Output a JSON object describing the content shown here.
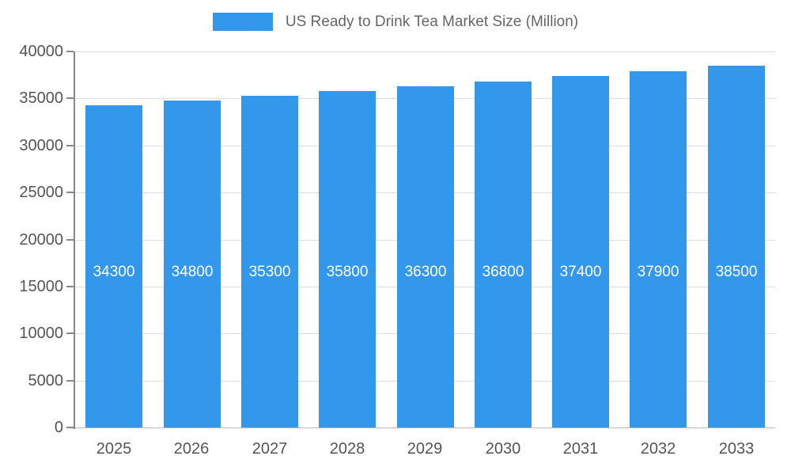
{
  "chart_data": {
    "type": "bar",
    "title": "US Ready to Drink Tea Market Size (Million)",
    "categories": [
      "2025",
      "2026",
      "2027",
      "2028",
      "2029",
      "2030",
      "2031",
      "2032",
      "2033"
    ],
    "values": [
      34300,
      34800,
      35300,
      35800,
      36300,
      36800,
      37400,
      37900,
      38500
    ],
    "xlabel": "",
    "ylabel": "",
    "ylim": [
      0,
      40000
    ],
    "ytick_step": 5000,
    "grid": "horizontal",
    "legend_position": "top",
    "bar_color": "#3398EC",
    "value_label_color": "#FFFFFF"
  }
}
